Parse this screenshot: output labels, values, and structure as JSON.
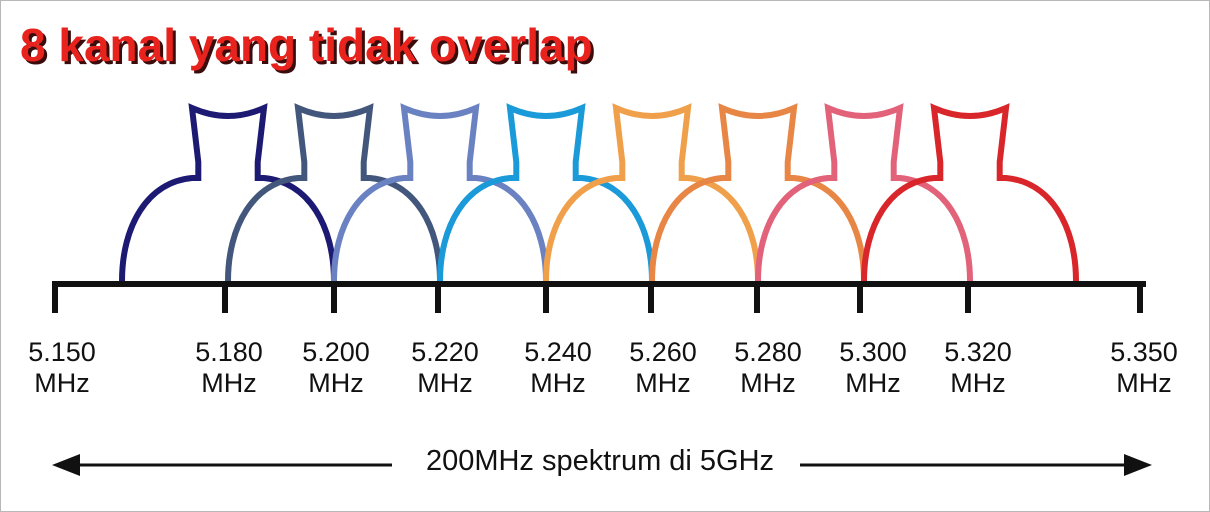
{
  "title": "8 kanal yang tidak overlap",
  "ticks": [
    {
      "value": "5.150",
      "unit": "MHz"
    },
    {
      "value": "5.180",
      "unit": "MHz"
    },
    {
      "value": "5.200",
      "unit": "MHz"
    },
    {
      "value": "5.220",
      "unit": "MHz"
    },
    {
      "value": "5.240",
      "unit": "MHz"
    },
    {
      "value": "5.260",
      "unit": "MHz"
    },
    {
      "value": "5.280",
      "unit": "MHz"
    },
    {
      "value": "5.300",
      "unit": "MHz"
    },
    {
      "value": "5.320",
      "unit": "MHz"
    },
    {
      "value": "5.350",
      "unit": "MHz"
    }
  ],
  "spectrum_label": "200MHz spektrum di 5GHz",
  "channel_colors": [
    "#1d1a73",
    "#43567c",
    "#6a82c2",
    "#1a9ad8",
    "#f0a04a",
    "#e88646",
    "#e2627a",
    "#d9262a"
  ],
  "colors": {
    "title": "#e8231d",
    "axis": "#111111"
  }
}
